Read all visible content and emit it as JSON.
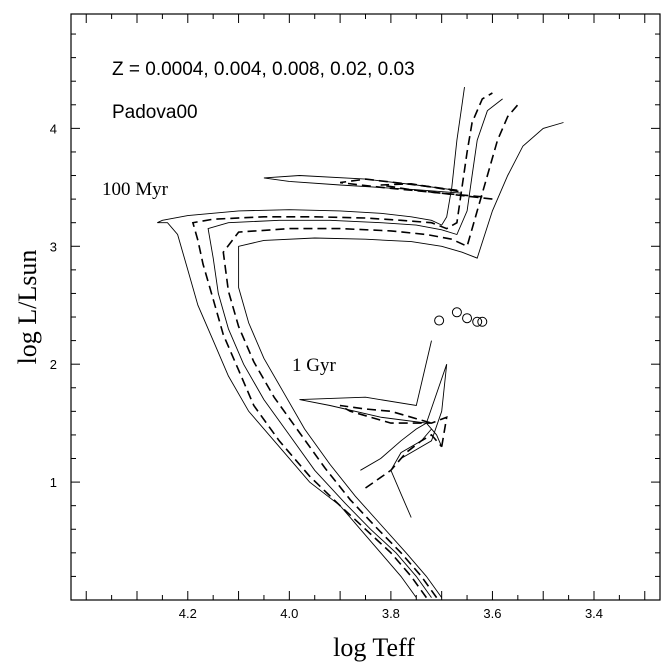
{
  "chart_data": {
    "type": "line",
    "title": "",
    "xlabel": "log Teff",
    "ylabel": "log L/Lsun",
    "xlim": [
      4.43,
      3.27
    ],
    "ylim": [
      0.0,
      4.97
    ],
    "x_ticks": [
      "4.2",
      "4.0",
      "3.8",
      "3.6",
      "3.4"
    ],
    "x_tick_values": [
      4.2,
      4.0,
      3.8,
      3.6,
      3.4
    ],
    "y_ticks": [
      "1",
      "2",
      "3",
      "4"
    ],
    "y_tick_values": [
      1,
      2,
      3,
      4
    ],
    "grid": false,
    "annotations": {
      "metallicity": "Z = 0.0004, 0.004, 0.008, 0.02, 0.03",
      "model": "Padova00",
      "age_young": "100 Myr",
      "age_old": "1 Gyr"
    },
    "series": [
      {
        "style": "solid",
        "x": [
          3.75,
          3.78,
          3.82,
          3.86,
          3.9,
          3.96,
          4.02,
          4.08,
          4.12,
          4.15,
          4.18,
          4.2,
          4.22,
          4.24,
          4.26,
          4.25,
          4.2,
          4.1,
          4.0,
          3.9,
          3.82,
          3.76,
          3.72,
          3.7,
          3.69,
          3.68,
          3.67,
          3.66,
          3.655
        ],
        "y": [
          0.02,
          0.2,
          0.4,
          0.6,
          0.8,
          1.0,
          1.3,
          1.6,
          1.9,
          2.2,
          2.5,
          2.8,
          3.1,
          3.2,
          3.2,
          3.22,
          3.26,
          3.3,
          3.31,
          3.3,
          3.28,
          3.25,
          3.22,
          3.18,
          3.25,
          3.5,
          3.9,
          4.2,
          4.35
        ]
      },
      {
        "style": "dashed",
        "x": [
          3.73,
          3.76,
          3.8,
          3.85,
          3.9,
          3.96,
          4.02,
          4.07,
          4.1,
          4.13,
          4.15,
          4.17,
          4.18,
          4.19,
          4.15,
          4.05,
          3.95,
          3.85,
          3.78,
          3.72,
          3.69,
          3.67,
          3.66,
          3.65,
          3.64,
          3.62,
          3.6
        ],
        "y": [
          0.02,
          0.2,
          0.4,
          0.6,
          0.8,
          1.05,
          1.35,
          1.65,
          1.95,
          2.25,
          2.55,
          2.85,
          3.05,
          3.2,
          3.23,
          3.25,
          3.25,
          3.24,
          3.22,
          3.2,
          3.15,
          3.2,
          3.5,
          3.8,
          4.05,
          4.25,
          4.3
        ]
      },
      {
        "style": "solid",
        "x": [
          3.72,
          3.75,
          3.79,
          3.84,
          3.89,
          3.95,
          4.0,
          4.05,
          4.09,
          4.12,
          4.14,
          4.15,
          4.16,
          4.12,
          4.02,
          3.92,
          3.82,
          3.75,
          3.7,
          3.67,
          3.65,
          3.64,
          3.63,
          3.61,
          3.58
        ],
        "y": [
          0.02,
          0.2,
          0.4,
          0.6,
          0.82,
          1.1,
          1.4,
          1.7,
          2.0,
          2.3,
          2.6,
          2.9,
          3.15,
          3.2,
          3.22,
          3.22,
          3.2,
          3.18,
          3.14,
          3.1,
          3.3,
          3.6,
          3.9,
          4.15,
          4.25
        ]
      },
      {
        "style": "dashed",
        "x": [
          3.71,
          3.74,
          3.78,
          3.83,
          3.88,
          3.93,
          3.98,
          4.03,
          4.07,
          4.1,
          4.12,
          4.13,
          4.1,
          4.0,
          3.9,
          3.8,
          3.73,
          3.68,
          3.65,
          3.63,
          3.61,
          3.59,
          3.57,
          3.55
        ],
        "y": [
          0.02,
          0.2,
          0.4,
          0.62,
          0.85,
          1.12,
          1.42,
          1.72,
          2.02,
          2.32,
          2.62,
          2.95,
          3.12,
          3.15,
          3.15,
          3.13,
          3.1,
          3.06,
          3.0,
          3.3,
          3.6,
          3.9,
          4.1,
          4.2
        ]
      },
      {
        "style": "solid",
        "x": [
          3.7,
          3.73,
          3.77,
          3.82,
          3.87,
          3.92,
          3.97,
          4.01,
          4.05,
          4.08,
          4.1,
          4.1,
          4.05,
          3.95,
          3.85,
          3.76,
          3.7,
          3.66,
          3.63,
          3.6,
          3.57,
          3.54,
          3.5,
          3.46
        ],
        "y": [
          0.02,
          0.2,
          0.4,
          0.64,
          0.88,
          1.15,
          1.45,
          1.75,
          2.05,
          2.35,
          2.65,
          3.0,
          3.05,
          3.07,
          3.06,
          3.04,
          3.0,
          2.95,
          2.9,
          3.3,
          3.6,
          3.85,
          4.0,
          4.05
        ]
      }
    ],
    "loops_100myr": [
      {
        "style": "solid",
        "x": [
          3.66,
          3.75,
          3.9,
          4.0,
          4.05,
          3.98,
          3.85,
          3.75,
          3.68
        ],
        "y": [
          3.45,
          3.48,
          3.52,
          3.55,
          3.58,
          3.6,
          3.57,
          3.52,
          3.48
        ]
      },
      {
        "style": "dashed",
        "x": [
          3.62,
          3.7,
          3.82,
          3.9,
          3.85,
          3.75,
          3.66
        ],
        "y": [
          3.42,
          3.45,
          3.5,
          3.54,
          3.57,
          3.52,
          3.47
        ]
      },
      {
        "style": "dashed",
        "x": [
          3.6,
          3.68,
          3.76,
          3.82,
          3.76,
          3.66
        ],
        "y": [
          3.4,
          3.44,
          3.48,
          3.52,
          3.53,
          3.46
        ]
      }
    ],
    "gyr_isochrones": [
      {
        "style": "solid",
        "x": [
          3.78,
          3.72,
          3.7,
          3.69,
          3.73,
          3.82,
          3.92,
          3.98,
          3.85,
          3.75,
          3.72
        ],
        "y": [
          1.2,
          1.35,
          1.6,
          2.0,
          1.5,
          1.55,
          1.65,
          1.7,
          1.72,
          1.65,
          2.2
        ]
      },
      {
        "style": "dashed",
        "x": [
          3.7,
          3.69,
          3.72,
          3.8,
          3.88,
          3.9,
          3.85,
          3.8,
          3.72
        ],
        "y": [
          1.3,
          1.55,
          1.5,
          1.5,
          1.6,
          1.65,
          1.62,
          1.6,
          1.5
        ]
      },
      {
        "style": "solid",
        "x": [
          3.86,
          3.82,
          3.78,
          3.75,
          3.73,
          3.71,
          3.7
        ],
        "y": [
          1.1,
          1.2,
          1.35,
          1.45,
          1.5,
          1.4,
          1.3
        ]
      },
      {
        "style": "dashed",
        "x": [
          3.85,
          3.8,
          3.77,
          3.74,
          3.72,
          3.7
        ],
        "y": [
          0.95,
          1.1,
          1.25,
          1.35,
          1.4,
          1.3
        ]
      },
      {
        "style": "solid",
        "x": [
          3.76,
          3.78,
          3.8,
          3.78,
          3.74,
          3.72
        ],
        "y": [
          0.7,
          0.9,
          1.1,
          1.25,
          1.35,
          1.45
        ]
      }
    ],
    "markers": {
      "x": [
        3.705,
        3.67,
        3.65,
        3.63,
        3.62
      ],
      "y": [
        2.37,
        2.44,
        2.39,
        2.36,
        2.36
      ]
    }
  }
}
